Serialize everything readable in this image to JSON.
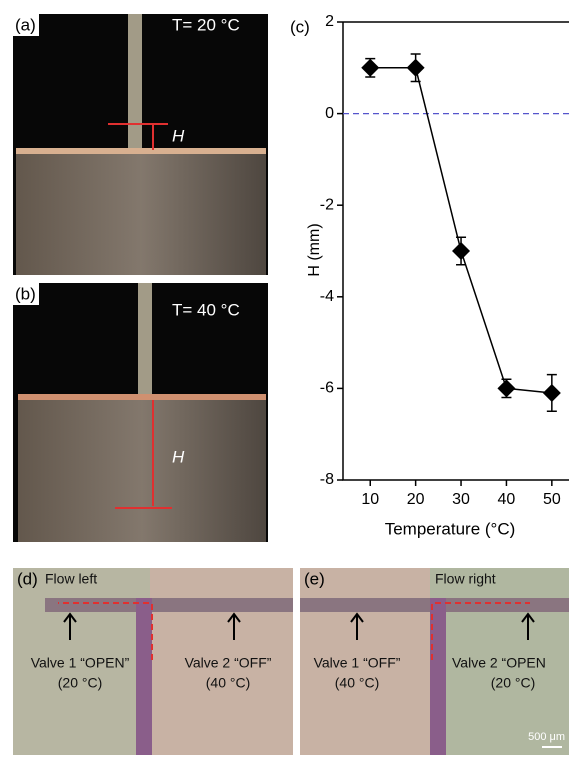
{
  "chart_data": {
    "type": "line",
    "panel_label": "(c)",
    "xlabel": "Temperature (°C)",
    "ylabel": "H (mm)",
    "x": [
      10,
      20,
      30,
      40,
      50
    ],
    "values": [
      1.0,
      1.0,
      -3.0,
      -6.0,
      -6.1
    ],
    "errors": [
      0.2,
      0.3,
      0.3,
      0.2,
      0.4
    ],
    "color": "#000000",
    "xlim": [
      4,
      54
    ],
    "ylim": [
      -8,
      2
    ],
    "xticks": [
      10,
      20,
      30,
      40,
      50
    ],
    "yticks": [
      -8,
      -6,
      -4,
      -2,
      0,
      2
    ],
    "reference_line": {
      "value": 0,
      "color": "#5555cc"
    }
  },
  "panels": {
    "a": {
      "label": "(a)",
      "temp": "T= 20 °C",
      "symbol": "H"
    },
    "b": {
      "label": "(b)",
      "temp": "T= 40 °C",
      "symbol": "H"
    },
    "d": {
      "label": "(d)",
      "flow": "Flow left",
      "valve1": "Valve 1 “OPEN”",
      "valve1_temp": "(20 °C)",
      "valve2": "Valve 2 “OFF”",
      "valve2_temp": "(40 °C)"
    },
    "e": {
      "label": "(e)",
      "flow": "Flow right",
      "valve1": "Valve 1 “OFF”",
      "valve1_temp": "(40 °C)",
      "valve2": "Valve 2 “OPEN",
      "valve2_temp": "(20 °C)",
      "scale": "500 μm"
    }
  }
}
